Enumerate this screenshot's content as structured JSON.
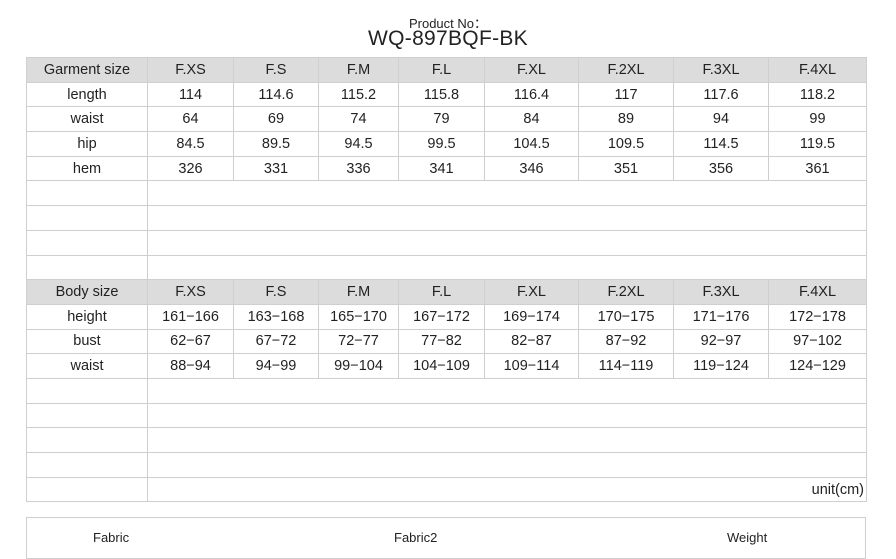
{
  "header": {
    "product_label": "Product No：",
    "product_no": "WQ-897BQF-BK"
  },
  "garment": {
    "header": [
      "Garment size",
      "F.XS",
      "F.S",
      "F.M",
      "F.L",
      "F.XL",
      "F.2XL",
      "F.3XL",
      "F.4XL"
    ],
    "rows": [
      [
        "length",
        "114",
        "114.6",
        "115.2",
        "115.8",
        "116.4",
        "117",
        "117.6",
        "118.2"
      ],
      [
        "waist",
        "64",
        "69",
        "74",
        "79",
        "84",
        "89",
        "94",
        "99"
      ],
      [
        "hip",
        "84.5",
        "89.5",
        "94.5",
        "99.5",
        "104.5",
        "109.5",
        "114.5",
        "119.5"
      ],
      [
        "hem",
        "326",
        "331",
        "336",
        "341",
        "346",
        "351",
        "356",
        "361"
      ]
    ]
  },
  "body": {
    "header": [
      "Body size",
      "F.XS",
      "F.S",
      "F.M",
      "F.L",
      "F.XL",
      "F.2XL",
      "F.3XL",
      "F.4XL"
    ],
    "rows": [
      [
        "height",
        "161−166",
        "163−168",
        "165−170",
        "167−172",
        "169−174",
        "170−175",
        "171−176",
        "172−178"
      ],
      [
        "bust",
        "62−67",
        "67−72",
        "72−77",
        "77−82",
        "82−87",
        "87−92",
        "92−97",
        "97−102"
      ],
      [
        "waist",
        "88−94",
        "94−99",
        "99−104",
        "104−109",
        "109−114",
        "114−119",
        "119−124",
        "124−129"
      ]
    ]
  },
  "unit": "unit(cm)",
  "footer": {
    "fabric": "Fabric",
    "fabric2": "Fabric2",
    "weight": "Weight"
  }
}
